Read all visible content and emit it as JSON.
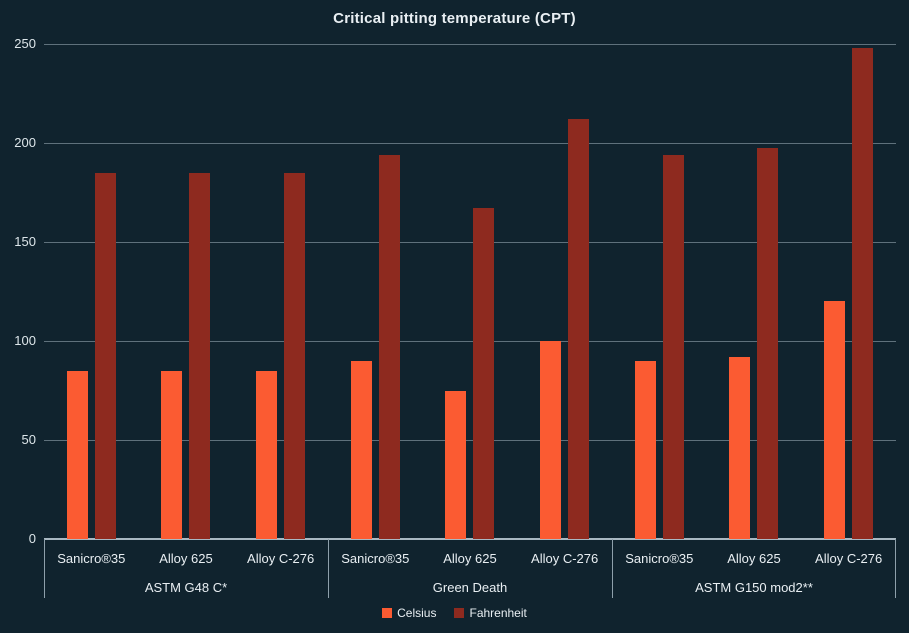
{
  "chart_data": {
    "type": "bar",
    "title": "Critical pitting temperature (CPT)",
    "xlabel": "",
    "ylabel": "",
    "ylim": [
      0,
      250
    ],
    "yticks": [
      0,
      50,
      100,
      150,
      200,
      250
    ],
    "grid": true,
    "legend_position": "bottom",
    "series": [
      {
        "name": "Celsius",
        "color": "#fb5b32"
      },
      {
        "name": "Fahrenheit",
        "color": "#8e2a1f"
      }
    ],
    "groups": [
      {
        "label": "ASTM G48 C*",
        "categories": [
          {
            "label": "Sanicro®35",
            "values": [
              85,
              185
            ]
          },
          {
            "label": "Alloy 625",
            "values": [
              85,
              185
            ]
          },
          {
            "label": "Alloy C-276",
            "values": [
              85,
              185
            ]
          }
        ]
      },
      {
        "label": "Green Death",
        "categories": [
          {
            "label": "Sanicro®35",
            "values": [
              90,
              194
            ]
          },
          {
            "label": "Alloy 625",
            "values": [
              75,
              167
            ]
          },
          {
            "label": "Alloy C-276",
            "values": [
              100,
              212
            ]
          }
        ]
      },
      {
        "label": "ASTM G150 mod2**",
        "categories": [
          {
            "label": "Sanicro®35",
            "values": [
              90,
              194
            ]
          },
          {
            "label": "Alloy 625",
            "values": [
              92,
              197.6
            ]
          },
          {
            "label": "Alloy C-276",
            "values": [
              120,
              248
            ]
          }
        ]
      }
    ]
  },
  "colors": {
    "background": "#10232e",
    "celsius": "#fb5b32",
    "fahrenheit": "#8e2a1f",
    "gridline": "#a0b2be",
    "axis": "#a9b8c2",
    "text": "#e9eff3"
  }
}
